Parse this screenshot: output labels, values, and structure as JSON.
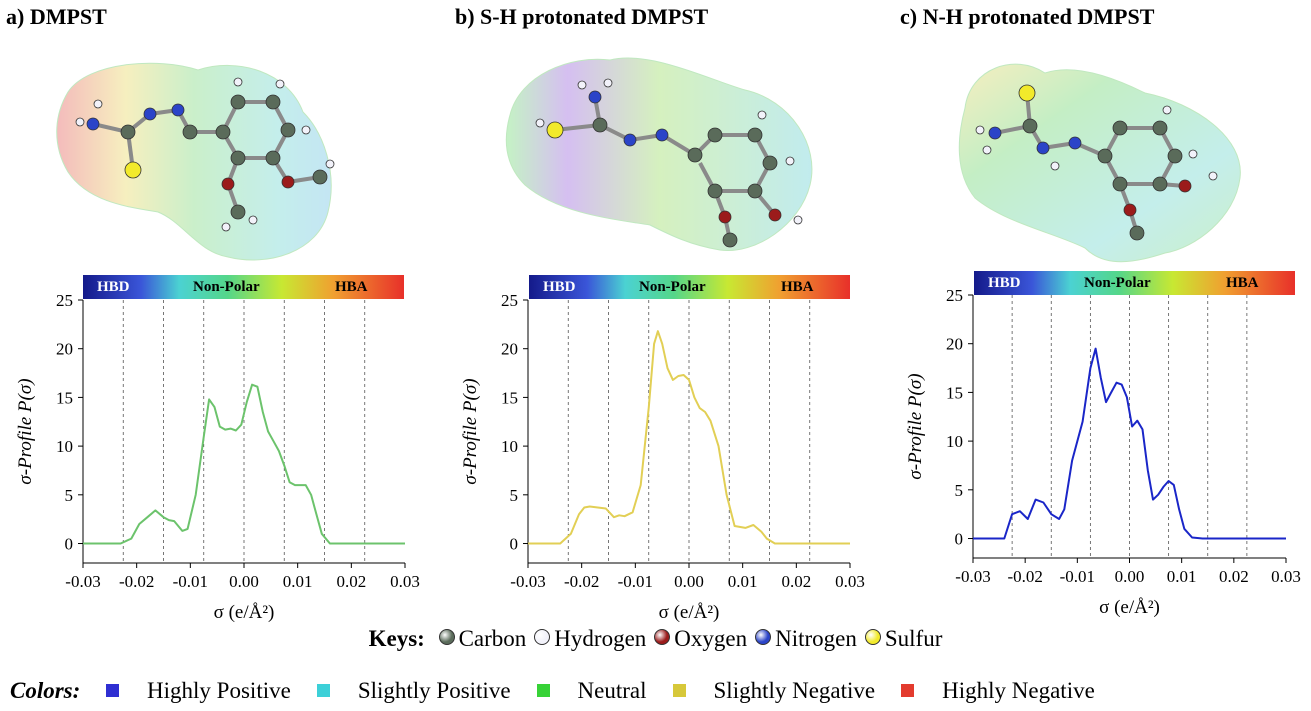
{
  "panels": [
    {
      "title": "a) DMPST",
      "curve_color": "#6cc36c"
    },
    {
      "title": "b) S-H protonated DMPST",
      "curve_color": "#e2cf55"
    },
    {
      "title": "c) N-H protonated DMPST",
      "curve_color": "#1a26c8"
    }
  ],
  "scale_bar": {
    "hbd": "HBD",
    "nonpolar": "Non-Polar",
    "hba": "HBA"
  },
  "axes": {
    "xlabel": "σ (e/Å²)",
    "ylabel": "σ-Profile P(σ)",
    "xticks": [
      "-0.03",
      "-0.02",
      "-0.01",
      "0.00",
      "0.01",
      "0.02",
      "0.03"
    ],
    "yticks": [
      "0",
      "5",
      "10",
      "15",
      "20",
      "25"
    ],
    "xlim": [
      -0.03,
      0.03
    ],
    "ylim": [
      -2,
      25
    ]
  },
  "chart_data": [
    {
      "type": "line",
      "title": "a) DMPST",
      "xlabel": "σ (e/Å²)",
      "ylabel": "σ-Profile P(σ)",
      "xlim": [
        -0.03,
        0.03
      ],
      "ylim": [
        -2,
        25
      ],
      "grid": "vertical dashed at ±0.0075, ±0.015, ±0.0225",
      "series": [
        {
          "x": [
            -0.03,
            -0.023,
            -0.021,
            -0.0195,
            -0.018,
            -0.0165,
            -0.015,
            -0.014,
            -0.013,
            -0.0115,
            -0.0105,
            -0.009,
            -0.0075,
            -0.0065,
            -0.0055,
            -0.0045,
            -0.0035,
            -0.0025,
            -0.0015,
            -0.0005,
            0.0005,
            0.0015,
            0.0025,
            0.0035,
            0.0045,
            0.0055,
            0.0065,
            0.0075,
            0.0085,
            0.0095,
            0.0105,
            0.0115,
            0.0125,
            0.0135,
            0.0145,
            0.016,
            0.03
          ],
          "y": [
            0,
            0,
            0.5,
            2.0,
            2.7,
            3.4,
            2.7,
            2.4,
            2.3,
            1.3,
            1.5,
            5.0,
            11.0,
            14.8,
            14.0,
            12.0,
            11.7,
            11.8,
            11.6,
            12.2,
            14.5,
            16.3,
            16.1,
            13.5,
            11.5,
            10.5,
            9.5,
            8.0,
            6.3,
            6.0,
            6.0,
            6.0,
            5.0,
            3.0,
            1.0,
            0,
            0
          ]
        }
      ]
    },
    {
      "type": "line",
      "title": "b) S-H protonated DMPST",
      "xlabel": "σ (e/Å²)",
      "ylabel": "σ-Profile P(σ)",
      "xlim": [
        -0.03,
        0.03
      ],
      "ylim": [
        -2,
        25
      ],
      "grid": "vertical dashed at ±0.0075, ±0.015, ±0.0225",
      "series": [
        {
          "x": [
            -0.03,
            -0.024,
            -0.022,
            -0.0205,
            -0.0195,
            -0.0185,
            -0.017,
            -0.0155,
            -0.014,
            -0.013,
            -0.012,
            -0.0105,
            -0.009,
            -0.0075,
            -0.0065,
            -0.0058,
            -0.005,
            -0.004,
            -0.003,
            -0.002,
            -0.001,
            0.0,
            0.001,
            0.002,
            0.003,
            0.004,
            0.0055,
            0.007,
            0.0085,
            0.0105,
            0.012,
            0.0135,
            0.0145,
            0.016,
            0.03
          ],
          "y": [
            0,
            0,
            1.0,
            3.0,
            3.7,
            3.8,
            3.7,
            3.6,
            2.7,
            2.9,
            2.8,
            3.2,
            6.0,
            14.0,
            20.5,
            21.8,
            20.5,
            18.0,
            16.8,
            17.2,
            17.3,
            16.8,
            15.0,
            13.9,
            13.5,
            12.6,
            10.0,
            5.0,
            1.8,
            1.6,
            1.9,
            1.2,
            0.5,
            0,
            0
          ]
        }
      ]
    },
    {
      "type": "line",
      "title": "c) N-H protonated DMPST",
      "xlabel": "σ (e/Å²)",
      "ylabel": "σ-Profile P(σ)",
      "xlim": [
        -0.03,
        0.03
      ],
      "ylim": [
        -2,
        25
      ],
      "grid": "vertical dashed at ±0.0075, ±0.015, ±0.0225",
      "series": [
        {
          "x": [
            -0.03,
            -0.024,
            -0.0225,
            -0.021,
            -0.0195,
            -0.018,
            -0.0165,
            -0.015,
            -0.0135,
            -0.0125,
            -0.011,
            -0.009,
            -0.0075,
            -0.0065,
            -0.0055,
            -0.0045,
            -0.0035,
            -0.0025,
            -0.0015,
            -0.0005,
            0.0005,
            0.0015,
            0.0025,
            0.0035,
            0.0045,
            0.0055,
            0.0065,
            0.0075,
            0.0085,
            0.0095,
            0.0105,
            0.012,
            0.014,
            0.03
          ],
          "y": [
            0,
            0,
            2.5,
            2.8,
            2.0,
            4.0,
            3.7,
            2.5,
            2.0,
            3.0,
            8.0,
            12.0,
            17.5,
            19.5,
            16.5,
            14.0,
            15.0,
            16.0,
            15.8,
            14.5,
            11.5,
            12.1,
            11.2,
            7.0,
            4.0,
            4.5,
            5.3,
            5.9,
            5.5,
            3.0,
            1.0,
            0.1,
            0,
            0
          ]
        }
      ]
    }
  ],
  "keys": {
    "title": "Keys:",
    "items": [
      {
        "label": "Carbon",
        "color": "#5a6b5a"
      },
      {
        "label": "Hydrogen",
        "color": "#f2f2fa"
      },
      {
        "label": "Oxygen",
        "color": "#9b1b1b"
      },
      {
        "label": "Nitrogen",
        "color": "#2b44c8"
      },
      {
        "label": "Sulfur",
        "color": "#f2ea2b"
      }
    ]
  },
  "colors": {
    "title": "Colors:",
    "items": [
      {
        "label": "Highly Positive",
        "color": "#2f2fd2"
      },
      {
        "label": "Slightly Positive",
        "color": "#3cd0d8"
      },
      {
        "label": "Neutral",
        "color": "#37d237"
      },
      {
        "label": "Slightly Negative",
        "color": "#d7c83a"
      },
      {
        "label": "Highly Negative",
        "color": "#e33b2e"
      }
    ]
  }
}
